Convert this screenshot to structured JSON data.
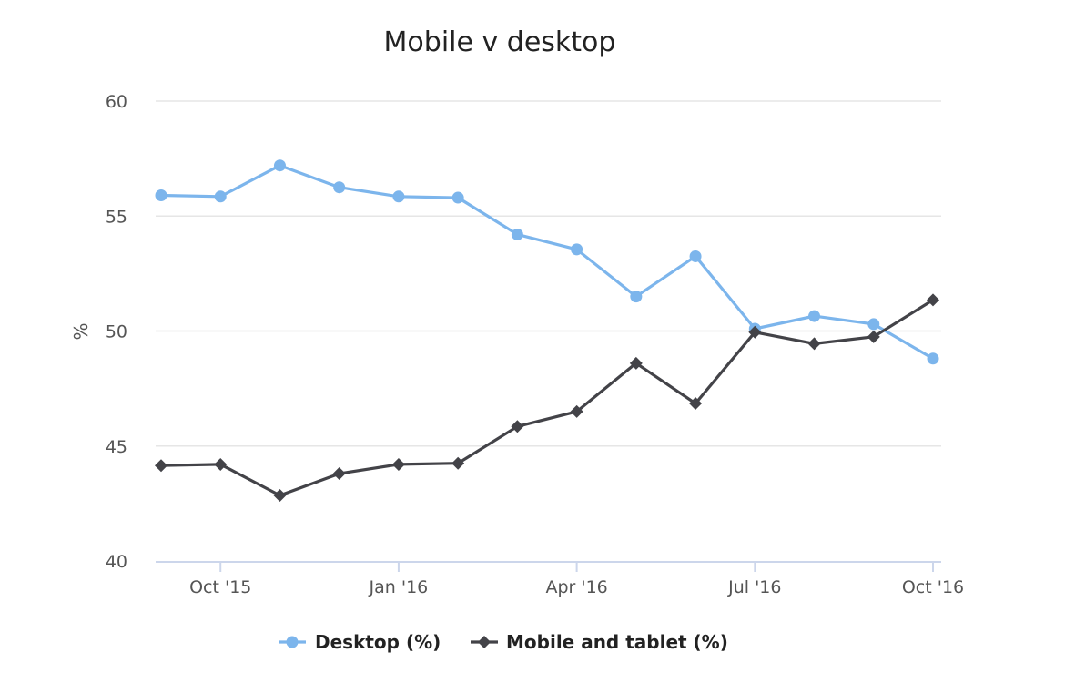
{
  "chart_data": {
    "type": "line",
    "title": "Mobile v desktop",
    "ylabel": "%",
    "xlabel": "",
    "ylim": [
      40,
      60
    ],
    "y_ticks": [
      "60",
      "55",
      "50",
      "45",
      "40"
    ],
    "y_tick_values": [
      60,
      55,
      50,
      45,
      40
    ],
    "x_tick_labels": [
      "Oct '15",
      "Jan '16",
      "Apr '16",
      "Jul '16",
      "Oct '16"
    ],
    "x_tick_months": [
      "2015-10",
      "2016-01",
      "2016-04",
      "2016-07",
      "2016-10"
    ],
    "x": [
      "2015-09",
      "2015-10",
      "2015-11",
      "2015-12",
      "2016-01",
      "2016-02",
      "2016-03",
      "2016-04",
      "2016-05",
      "2016-06",
      "2016-07",
      "2016-08",
      "2016-09",
      "2016-10"
    ],
    "series": [
      {
        "name": "Desktop (%)",
        "color": "#7cb5ec",
        "marker": "circle",
        "values": [
          55.9,
          55.85,
          57.2,
          56.25,
          55.85,
          55.8,
          54.2,
          53.55,
          51.5,
          53.25,
          50.1,
          50.65,
          50.3,
          48.8
        ]
      },
      {
        "name": "Mobile and tablet (%)",
        "color": "#434348",
        "marker": "diamond",
        "values": [
          44.15,
          44.2,
          42.85,
          43.8,
          44.2,
          44.25,
          45.85,
          46.5,
          48.6,
          46.85,
          49.95,
          49.45,
          49.75,
          51.35
        ]
      }
    ],
    "grid": true,
    "legend_position": "bottom-center"
  }
}
